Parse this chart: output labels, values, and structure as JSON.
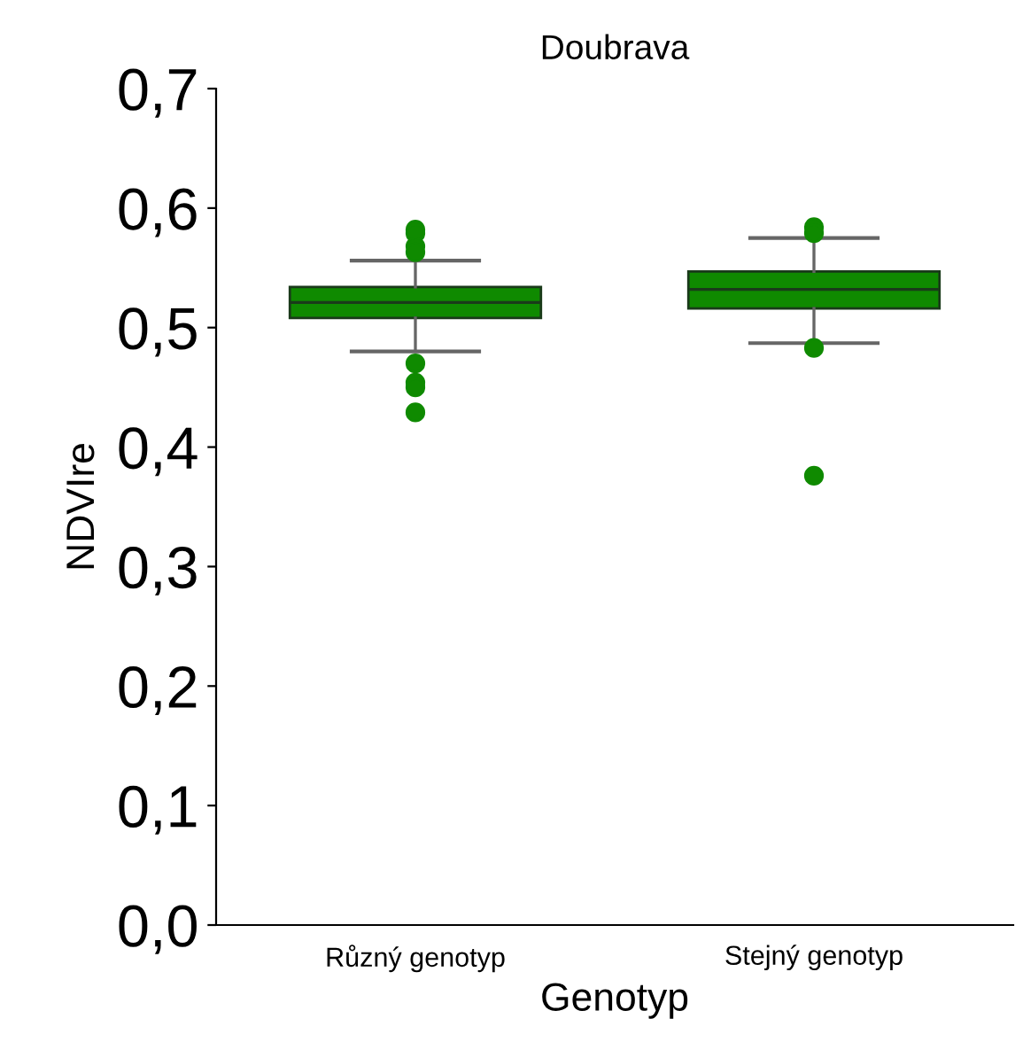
{
  "chart_data": {
    "type": "box",
    "title": "Doubrava",
    "xlabel": "Genotyp",
    "ylabel": "NDVIre",
    "categories": [
      "Různý genotyp",
      "Stejný genotyp"
    ],
    "color": "#0f8a00",
    "boxes": [
      {
        "low": 0.48,
        "q1": 0.508,
        "median": 0.521,
        "q3": 0.534,
        "high": 0.556,
        "outliers": [
          0.582,
          0.579,
          0.568,
          0.563,
          0.47,
          0.454,
          0.45,
          0.429
        ]
      },
      {
        "low": 0.487,
        "q1": 0.516,
        "median": 0.532,
        "q3": 0.547,
        "high": 0.575,
        "outliers": [
          0.584,
          0.579,
          0.483,
          0.376
        ]
      }
    ],
    "ylim": [
      0,
      0.7
    ],
    "yticks": [
      {
        "value": 0,
        "label": "0,0"
      },
      {
        "value": 0.1,
        "label": "0,1"
      },
      {
        "value": 0.2,
        "label": "0,2"
      },
      {
        "value": 0.3,
        "label": "0,3"
      },
      {
        "value": 0.4,
        "label": "0,4"
      },
      {
        "value": 0.5,
        "label": "0,5"
      },
      {
        "value": 0.6,
        "label": "0,6"
      },
      {
        "value": 0.7,
        "label": "0,7"
      }
    ],
    "grid": false,
    "legend": false
  }
}
